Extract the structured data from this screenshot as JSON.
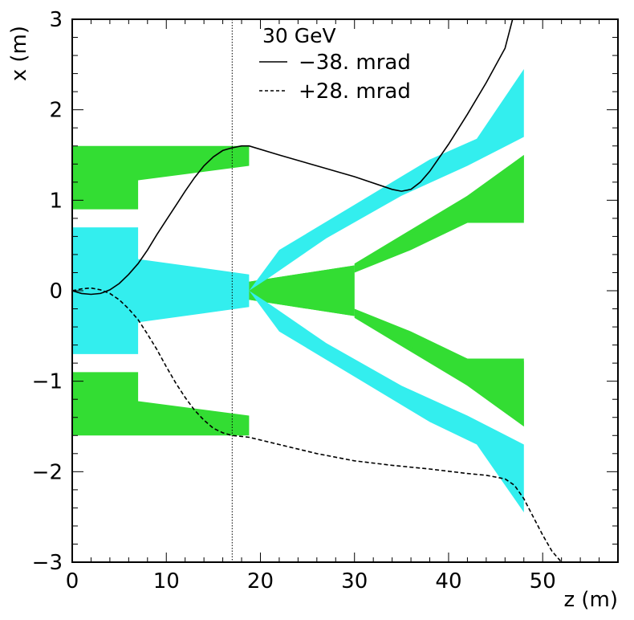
{
  "chart_data": {
    "type": "line",
    "title": "",
    "xlabel": "z (m)",
    "ylabel": "x (m)",
    "xlim": [
      0,
      58
    ],
    "ylim": [
      -3,
      3
    ],
    "x_ticks": [
      0,
      10,
      20,
      30,
      40,
      50
    ],
    "y_ticks": [
      -3,
      -2,
      -1,
      0,
      1,
      2,
      3
    ],
    "x_tick_labels": [
      "0",
      "10",
      "20",
      "30",
      "40",
      "50"
    ],
    "y_tick_labels": [
      "−3",
      "−2",
      "−1",
      "0",
      "1",
      "2",
      "3"
    ],
    "grid": false,
    "legend": {
      "title": "30 GeV",
      "position": "top-center",
      "entries": [
        {
          "label": "−38. mrad",
          "style": "solid"
        },
        {
          "label": "+28. mrad",
          "style": "dashed"
        }
      ]
    },
    "vertical_line": {
      "x": 17,
      "style": "dotted"
    },
    "colors": {
      "green": "#33dd33",
      "cyan": "#33eeee",
      "line": "#000000"
    },
    "regions": [
      {
        "name": "green-upper-magnet",
        "color": "green",
        "points": [
          [
            0,
            1.6
          ],
          [
            18.8,
            1.6
          ],
          [
            18.8,
            1.38
          ],
          [
            7,
            1.22
          ],
          [
            7,
            0.9
          ],
          [
            0,
            0.9
          ]
        ]
      },
      {
        "name": "green-lower-magnet",
        "color": "green",
        "points": [
          [
            0,
            -1.6
          ],
          [
            18.8,
            -1.6
          ],
          [
            18.8,
            -1.38
          ],
          [
            7,
            -1.22
          ],
          [
            7,
            -0.9
          ],
          [
            0,
            -0.9
          ]
        ]
      },
      {
        "name": "cyan-central-beam",
        "color": "cyan",
        "points": [
          [
            0,
            0.7
          ],
          [
            7,
            0.7
          ],
          [
            7,
            0.35
          ],
          [
            18.8,
            0.18
          ],
          [
            18.8,
            -0.18
          ],
          [
            7,
            -0.35
          ],
          [
            7,
            -0.7
          ],
          [
            0,
            -0.7
          ]
        ]
      },
      {
        "name": "green-central-cone",
        "color": "green",
        "points": [
          [
            18.8,
            0.1
          ],
          [
            30,
            0.28
          ],
          [
            30,
            0.3
          ],
          [
            42,
            0.75
          ],
          [
            48,
            0.78
          ],
          [
            48,
            1.5
          ],
          [
            42,
            1.05
          ],
          [
            30,
            0.3
          ],
          [
            30,
            -0.3
          ],
          [
            42,
            -1.05
          ],
          [
            48,
            -1.5
          ],
          [
            48,
            -0.78
          ],
          [
            42,
            -0.75
          ],
          [
            30,
            -0.3
          ],
          [
            30,
            -0.28
          ],
          [
            18.8,
            -0.1
          ]
        ]
      },
      {
        "name": "green-central-core",
        "color": "green",
        "points": [
          [
            18.8,
            0.1
          ],
          [
            30,
            0.28
          ],
          [
            30,
            -0.28
          ],
          [
            18.8,
            -0.1
          ]
        ]
      },
      {
        "name": "cyan-upper-arm",
        "color": "cyan",
        "points": [
          [
            18.8,
            0
          ],
          [
            22,
            0.45
          ],
          [
            30,
            0.95
          ],
          [
            38,
            1.45
          ],
          [
            43,
            1.68
          ],
          [
            48,
            2.45
          ],
          [
            48,
            1.7
          ],
          [
            42,
            1.38
          ],
          [
            35,
            1.05
          ],
          [
            27,
            0.58
          ],
          [
            21,
            0.15
          ]
        ]
      },
      {
        "name": "cyan-lower-arm",
        "color": "cyan",
        "points": [
          [
            18.8,
            0
          ],
          [
            22,
            -0.45
          ],
          [
            30,
            -0.95
          ],
          [
            38,
            -1.45
          ],
          [
            43,
            -1.7
          ],
          [
            48,
            -2.45
          ],
          [
            48,
            -1.7
          ],
          [
            42,
            -1.38
          ],
          [
            35,
            -1.05
          ],
          [
            27,
            -0.58
          ],
          [
            21,
            -0.15
          ]
        ]
      },
      {
        "name": "green-upper-arm",
        "color": "green",
        "points": [
          [
            30,
            0.3
          ],
          [
            36,
            0.62
          ],
          [
            42,
            1.05
          ],
          [
            48,
            1.5
          ],
          [
            48,
            0.75
          ],
          [
            42,
            0.75
          ],
          [
            36,
            0.45
          ],
          [
            30,
            0.2
          ]
        ]
      },
      {
        "name": "green-lower-arm",
        "color": "green",
        "points": [
          [
            30,
            -0.3
          ],
          [
            36,
            -0.62
          ],
          [
            42,
            -1.05
          ],
          [
            48,
            -1.5
          ],
          [
            48,
            -0.75
          ],
          [
            42,
            -0.75
          ],
          [
            36,
            -0.45
          ],
          [
            30,
            -0.2
          ]
        ]
      }
    ],
    "series": [
      {
        "name": "−38. mrad",
        "style": "solid",
        "x": [
          0,
          1,
          2,
          3,
          4,
          5,
          6,
          7,
          8,
          9,
          10,
          11,
          12,
          13,
          14,
          15,
          16,
          17,
          18,
          18.8,
          22,
          26,
          30,
          34,
          35,
          36,
          37,
          38,
          40,
          42,
          44,
          46,
          46.8
        ],
        "y": [
          0,
          -0.03,
          -0.04,
          -0.03,
          0.01,
          0.08,
          0.18,
          0.3,
          0.45,
          0.62,
          0.78,
          0.94,
          1.1,
          1.25,
          1.38,
          1.48,
          1.55,
          1.58,
          1.6,
          1.6,
          1.5,
          1.38,
          1.26,
          1.12,
          1.1,
          1.12,
          1.2,
          1.32,
          1.62,
          1.95,
          2.3,
          2.68,
          3.0
        ]
      },
      {
        "name": "+28. mrad",
        "style": "dashed",
        "x": [
          0,
          1,
          2,
          3,
          4,
          5,
          6,
          7,
          8,
          9,
          10,
          11,
          12,
          13,
          14,
          15,
          16,
          17,
          18,
          18.8,
          22,
          26,
          30,
          34,
          38,
          42,
          44,
          46,
          47,
          48,
          49,
          50,
          51,
          52
        ],
        "y": [
          0,
          0.02,
          0.03,
          0.01,
          -0.03,
          -0.1,
          -0.2,
          -0.32,
          -0.48,
          -0.65,
          -0.84,
          -1.02,
          -1.18,
          -1.32,
          -1.43,
          -1.52,
          -1.57,
          -1.6,
          -1.61,
          -1.62,
          -1.7,
          -1.8,
          -1.88,
          -1.93,
          -1.97,
          -2.02,
          -2.04,
          -2.08,
          -2.15,
          -2.3,
          -2.5,
          -2.7,
          -2.88,
          -3.0
        ]
      }
    ]
  }
}
